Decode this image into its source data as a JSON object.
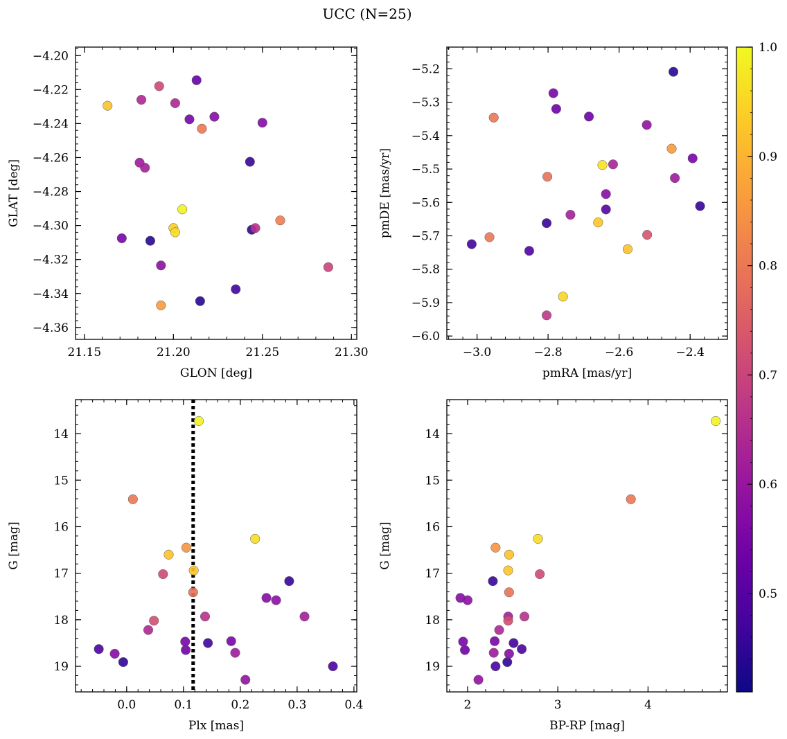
{
  "suptitle": "UCC (N=25)",
  "colorbar": {
    "colormap": "plasma",
    "range": [
      0.41,
      1.0
    ],
    "ticks": [
      0.5,
      0.6,
      0.7,
      0.8,
      0.9,
      1.0
    ],
    "tick_labels": [
      "0.5",
      "0.6",
      "0.7",
      "0.8",
      "0.9",
      "1.0"
    ]
  },
  "chart_data": [
    {
      "type": "scatter",
      "xlabel": "GLON [deg]",
      "ylabel": "GLAT [deg]",
      "xlim": [
        21.145,
        21.303
      ],
      "ylim": [
        -4.367,
        -4.195
      ],
      "y_inverted": false,
      "xticks": [
        21.15,
        21.2,
        21.25,
        21.3
      ],
      "xtick_labels": [
        "21.15",
        "21.20",
        "21.25",
        "21.30"
      ],
      "yticks": [
        -4.36,
        -4.34,
        -4.32,
        -4.3,
        -4.28,
        -4.26,
        -4.24,
        -4.22,
        -4.2
      ],
      "ytick_labels": [
        "−4.36",
        "−4.34",
        "−4.32",
        "−4.30",
        "−4.28",
        "−4.26",
        "−4.24",
        "−4.22",
        "−4.20"
      ],
      "points": [
        {
          "x": 21.163,
          "y": -4.2295,
          "c": 0.92
        },
        {
          "x": 21.192,
          "y": -4.218,
          "c": 0.71
        },
        {
          "x": 21.213,
          "y": -4.2145,
          "c": 0.52
        },
        {
          "x": 21.182,
          "y": -4.226,
          "c": 0.64
        },
        {
          "x": 21.201,
          "y": -4.228,
          "c": 0.64
        },
        {
          "x": 21.209,
          "y": -4.2375,
          "c": 0.55
        },
        {
          "x": 21.216,
          "y": -4.243,
          "c": 0.8
        },
        {
          "x": 21.223,
          "y": -4.236,
          "c": 0.57
        },
        {
          "x": 21.25,
          "y": -4.2395,
          "c": 0.57
        },
        {
          "x": 21.181,
          "y": -4.263,
          "c": 0.61
        },
        {
          "x": 21.184,
          "y": -4.266,
          "c": 0.62
        },
        {
          "x": 21.243,
          "y": -4.2625,
          "c": 0.46
        },
        {
          "x": 21.205,
          "y": -4.2905,
          "c": 0.99
        },
        {
          "x": 21.2,
          "y": -4.3015,
          "c": 0.94
        },
        {
          "x": 21.201,
          "y": -4.304,
          "c": 0.96
        },
        {
          "x": 21.246,
          "y": -4.3015,
          "c": 0.66
        },
        {
          "x": 21.244,
          "y": -4.3025,
          "c": 0.45
        },
        {
          "x": 21.26,
          "y": -4.297,
          "c": 0.81
        },
        {
          "x": 21.171,
          "y": -4.3075,
          "c": 0.55
        },
        {
          "x": 21.187,
          "y": -4.309,
          "c": 0.44
        },
        {
          "x": 21.193,
          "y": -4.3235,
          "c": 0.58
        },
        {
          "x": 21.287,
          "y": -4.3245,
          "c": 0.7
        },
        {
          "x": 21.235,
          "y": -4.3375,
          "c": 0.47
        },
        {
          "x": 21.215,
          "y": -4.3445,
          "c": 0.44
        },
        {
          "x": 21.193,
          "y": -4.347,
          "c": 0.86
        }
      ]
    },
    {
      "type": "scatter",
      "xlabel": "pmRA [mas/yr]",
      "ylabel": "pmDE [mas/yr]",
      "xlim": [
        -3.085,
        -2.295
      ],
      "ylim": [
        -6.01,
        -5.135
      ],
      "y_inverted": false,
      "xticks": [
        -3.0,
        -2.8,
        -2.6,
        -2.4
      ],
      "xtick_labels": [
        "−3.0",
        "−2.8",
        "−2.6",
        "−2.4"
      ],
      "yticks": [
        -6.0,
        -5.9,
        -5.8,
        -5.7,
        -5.6,
        -5.5,
        -5.4,
        -5.3,
        -5.2
      ],
      "ytick_labels": [
        "−6.0",
        "−5.9",
        "−5.8",
        "−5.7",
        "−5.6",
        "−5.5",
        "−5.4",
        "−5.3",
        "−5.2"
      ],
      "points": [
        {
          "x": -2.447,
          "y": -5.209,
          "c": 0.44
        },
        {
          "x": -2.785,
          "y": -5.273,
          "c": 0.55
        },
        {
          "x": -2.777,
          "y": -5.32,
          "c": 0.53
        },
        {
          "x": -2.685,
          "y": -5.343,
          "c": 0.53
        },
        {
          "x": -2.953,
          "y": -5.346,
          "c": 0.8
        },
        {
          "x": -2.522,
          "y": -5.368,
          "c": 0.59
        },
        {
          "x": -2.452,
          "y": -5.439,
          "c": 0.86
        },
        {
          "x": -2.393,
          "y": -5.468,
          "c": 0.55
        },
        {
          "x": -2.647,
          "y": -5.488,
          "c": 0.97
        },
        {
          "x": -2.617,
          "y": -5.486,
          "c": 0.63
        },
        {
          "x": -2.802,
          "y": -5.523,
          "c": 0.79
        },
        {
          "x": -2.443,
          "y": -5.527,
          "c": 0.61
        },
        {
          "x": -2.637,
          "y": -5.575,
          "c": 0.57
        },
        {
          "x": -2.372,
          "y": -5.611,
          "c": 0.46
        },
        {
          "x": -2.637,
          "y": -5.621,
          "c": 0.5
        },
        {
          "x": -2.737,
          "y": -5.637,
          "c": 0.62
        },
        {
          "x": -2.804,
          "y": -5.662,
          "c": 0.46
        },
        {
          "x": -2.659,
          "y": -5.66,
          "c": 0.93
        },
        {
          "x": -2.521,
          "y": -5.697,
          "c": 0.73
        },
        {
          "x": -2.965,
          "y": -5.704,
          "c": 0.8
        },
        {
          "x": -3.015,
          "y": -5.725,
          "c": 0.47
        },
        {
          "x": -2.576,
          "y": -5.74,
          "c": 0.92
        },
        {
          "x": -2.853,
          "y": -5.745,
          "c": 0.49
        },
        {
          "x": -2.758,
          "y": -5.882,
          "c": 0.95
        },
        {
          "x": -2.804,
          "y": -5.938,
          "c": 0.67
        }
      ]
    },
    {
      "type": "scatter",
      "xlabel": "Plx [mas]",
      "ylabel": "G [mag]",
      "xlim": [
        -0.09,
        0.405
      ],
      "ylim": [
        13.27,
        19.55
      ],
      "y_inverted": true,
      "xticks": [
        0.0,
        0.1,
        0.2,
        0.3,
        0.4
      ],
      "xtick_labels": [
        "0.0",
        "0.1",
        "0.2",
        "0.3",
        "0.4"
      ],
      "yticks": [
        14,
        15,
        16,
        17,
        18,
        19
      ],
      "ytick_labels": [
        "14",
        "15",
        "16",
        "17",
        "18",
        "19"
      ],
      "vline": {
        "x": 0.117,
        "style": "dotted"
      },
      "points": [
        {
          "x": 0.127,
          "y": 13.73,
          "c": 0.99
        },
        {
          "x": 0.011,
          "y": 15.41,
          "c": 0.8
        },
        {
          "x": 0.226,
          "y": 16.26,
          "c": 0.96
        },
        {
          "x": 0.105,
          "y": 16.45,
          "c": 0.85
        },
        {
          "x": 0.074,
          "y": 16.6,
          "c": 0.92
        },
        {
          "x": 0.118,
          "y": 16.94,
          "c": 0.93
        },
        {
          "x": 0.064,
          "y": 17.02,
          "c": 0.71
        },
        {
          "x": 0.286,
          "y": 17.17,
          "c": 0.46
        },
        {
          "x": 0.117,
          "y": 17.41,
          "c": 0.79
        },
        {
          "x": 0.246,
          "y": 17.53,
          "c": 0.57
        },
        {
          "x": 0.263,
          "y": 17.58,
          "c": 0.58
        },
        {
          "x": 0.138,
          "y": 17.93,
          "c": 0.66
        },
        {
          "x": 0.313,
          "y": 17.93,
          "c": 0.62
        },
        {
          "x": 0.048,
          "y": 18.02,
          "c": 0.72
        },
        {
          "x": 0.038,
          "y": 18.22,
          "c": 0.64
        },
        {
          "x": 0.103,
          "y": 18.47,
          "c": 0.55
        },
        {
          "x": 0.184,
          "y": 18.46,
          "c": 0.55
        },
        {
          "x": 0.143,
          "y": 18.5,
          "c": 0.47
        },
        {
          "x": -0.049,
          "y": 18.63,
          "c": 0.48
        },
        {
          "x": 0.104,
          "y": 18.65,
          "c": 0.54
        },
        {
          "x": -0.021,
          "y": 18.73,
          "c": 0.57
        },
        {
          "x": 0.191,
          "y": 18.71,
          "c": 0.61
        },
        {
          "x": -0.006,
          "y": 18.91,
          "c": 0.45
        },
        {
          "x": 0.363,
          "y": 19.0,
          "c": 0.48
        },
        {
          "x": 0.209,
          "y": 19.29,
          "c": 0.59
        }
      ]
    },
    {
      "type": "scatter",
      "xlabel": "BP-RP [mag]",
      "ylabel": "G [mag]",
      "xlim": [
        1.77,
        4.88
      ],
      "ylim": [
        13.27,
        19.55
      ],
      "y_inverted": true,
      "xticks": [
        2,
        3,
        4
      ],
      "xtick_labels": [
        "2",
        "3",
        "4"
      ],
      "yticks": [
        14,
        15,
        16,
        17,
        18,
        19
      ],
      "ytick_labels": [
        "14",
        "15",
        "16",
        "17",
        "18",
        "19"
      ],
      "points": [
        {
          "x": 4.75,
          "y": 13.73,
          "c": 0.99
        },
        {
          "x": 3.81,
          "y": 15.41,
          "c": 0.8
        },
        {
          "x": 2.78,
          "y": 16.26,
          "c": 0.96
        },
        {
          "x": 2.31,
          "y": 16.45,
          "c": 0.85
        },
        {
          "x": 2.46,
          "y": 16.6,
          "c": 0.92
        },
        {
          "x": 2.45,
          "y": 16.94,
          "c": 0.93
        },
        {
          "x": 2.8,
          "y": 17.02,
          "c": 0.71
        },
        {
          "x": 2.28,
          "y": 17.17,
          "c": 0.46
        },
        {
          "x": 2.46,
          "y": 17.41,
          "c": 0.79
        },
        {
          "x": 1.92,
          "y": 17.53,
          "c": 0.57
        },
        {
          "x": 2.0,
          "y": 17.58,
          "c": 0.58
        },
        {
          "x": 2.63,
          "y": 17.93,
          "c": 0.66
        },
        {
          "x": 2.45,
          "y": 17.93,
          "c": 0.62
        },
        {
          "x": 2.45,
          "y": 18.02,
          "c": 0.72
        },
        {
          "x": 2.35,
          "y": 18.22,
          "c": 0.64
        },
        {
          "x": 1.95,
          "y": 18.47,
          "c": 0.55
        },
        {
          "x": 2.3,
          "y": 18.46,
          "c": 0.55
        },
        {
          "x": 2.51,
          "y": 18.5,
          "c": 0.47
        },
        {
          "x": 2.6,
          "y": 18.63,
          "c": 0.48
        },
        {
          "x": 1.97,
          "y": 18.65,
          "c": 0.54
        },
        {
          "x": 2.46,
          "y": 18.73,
          "c": 0.57
        },
        {
          "x": 2.29,
          "y": 18.71,
          "c": 0.61
        },
        {
          "x": 2.44,
          "y": 18.91,
          "c": 0.45
        },
        {
          "x": 2.31,
          "y": 19.0,
          "c": 0.48
        },
        {
          "x": 2.12,
          "y": 19.29,
          "c": 0.59
        }
      ]
    }
  ]
}
